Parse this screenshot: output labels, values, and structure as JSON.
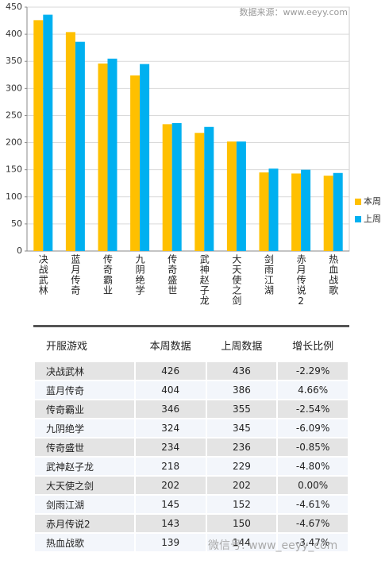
{
  "chart_data": {
    "type": "bar",
    "source_note": "数据来源：www.eeyy.com",
    "categories": [
      "决战武林",
      "蓝月传奇",
      "传奇霸业",
      "九阴绝学",
      "传奇盛世",
      "武神赵子龙",
      "大天使之剑",
      "剑雨江湖",
      "赤月传说2",
      "热血战歌"
    ],
    "series": [
      {
        "name": "本周",
        "color": "#ffc000",
        "values": [
          426,
          404,
          346,
          324,
          234,
          218,
          202,
          145,
          143,
          139
        ]
      },
      {
        "name": "上周",
        "color": "#00b0f0",
        "values": [
          436,
          386,
          355,
          345,
          236,
          229,
          202,
          152,
          150,
          144
        ]
      }
    ],
    "ylim": [
      0,
      450
    ],
    "yticks": [
      0,
      50,
      100,
      150,
      200,
      250,
      300,
      350,
      400,
      450
    ],
    "grid": true,
    "legend": "right"
  },
  "table": {
    "header": [
      "开服游戏",
      "本周数据",
      "上周数据",
      "增长比例"
    ],
    "rows": [
      [
        "决战武林",
        426,
        436,
        "-2.29%"
      ],
      [
        "蓝月传奇",
        404,
        386,
        "4.66%"
      ],
      [
        "传奇霸业",
        346,
        355,
        "-2.54%"
      ],
      [
        "九阴绝学",
        324,
        345,
        "-6.09%"
      ],
      [
        "传奇盛世",
        234,
        236,
        "-0.85%"
      ],
      [
        "武神赵子龙",
        218,
        229,
        "-4.80%"
      ],
      [
        "大天使之剑",
        202,
        202,
        "0.00%"
      ],
      [
        "剑雨江湖",
        145,
        152,
        "-4.61%"
      ],
      [
        "赤月传说2",
        143,
        150,
        "-4.67%"
      ],
      [
        "热血战歌",
        139,
        144,
        "-3.47%"
      ]
    ]
  },
  "watermark": "微信号: www_eeyy_com"
}
